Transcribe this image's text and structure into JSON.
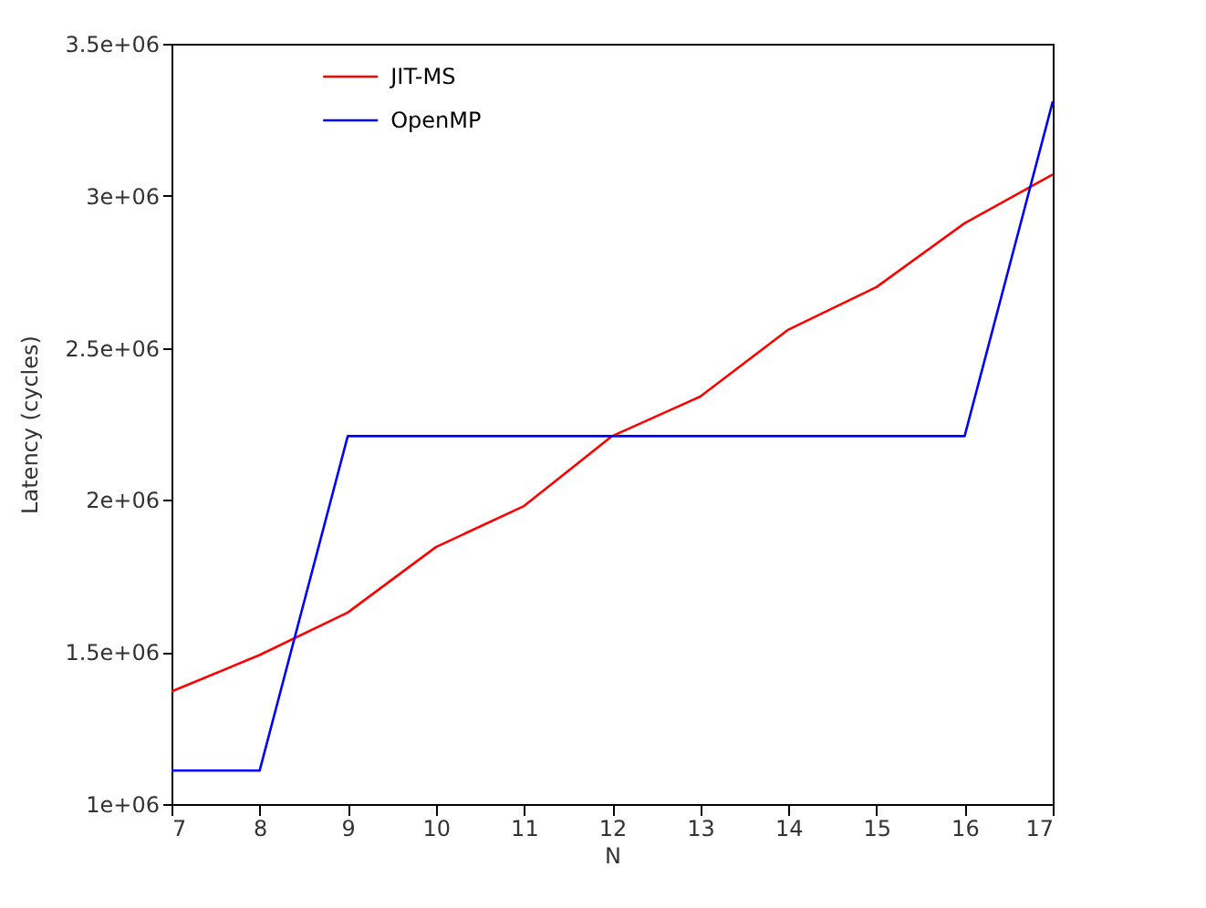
{
  "chart_data": {
    "type": "line",
    "xlabel": "N",
    "ylabel": "Latency (cycles)",
    "x": [
      7,
      8,
      9,
      10,
      11,
      12,
      13,
      14,
      15,
      16,
      17
    ],
    "series": [
      {
        "name": "JIT-MS",
        "color": "#ff0000",
        "values": [
          1370000,
          1490000,
          1630000,
          1845000,
          1980000,
          2210000,
          2340000,
          2560000,
          2700000,
          2910000,
          3070000
        ]
      },
      {
        "name": "OpenMP",
        "color": "#0000ff",
        "values": [
          1110000,
          1110000,
          2210000,
          2210000,
          2210000,
          2210000,
          2210000,
          2210000,
          2210000,
          2210000,
          3310000
        ]
      }
    ],
    "xlim": [
      7,
      17
    ],
    "xticks": [
      7,
      8,
      9,
      10,
      11,
      12,
      13,
      14,
      15,
      16,
      17
    ],
    "ylim": [
      1000000,
      3500000
    ],
    "yticks": [
      {
        "value": 1000000,
        "label": "1e+06"
      },
      {
        "value": 1500000,
        "label": "1.5e+06"
      },
      {
        "value": 2000000,
        "label": "2e+06"
      },
      {
        "value": 2500000,
        "label": "2.5e+06"
      },
      {
        "value": 3000000,
        "label": "3e+06"
      },
      {
        "value": 3500000,
        "label": "3.5e+06"
      }
    ],
    "grid": false,
    "legend": "top",
    "marker": "none",
    "line_style": "solid"
  }
}
